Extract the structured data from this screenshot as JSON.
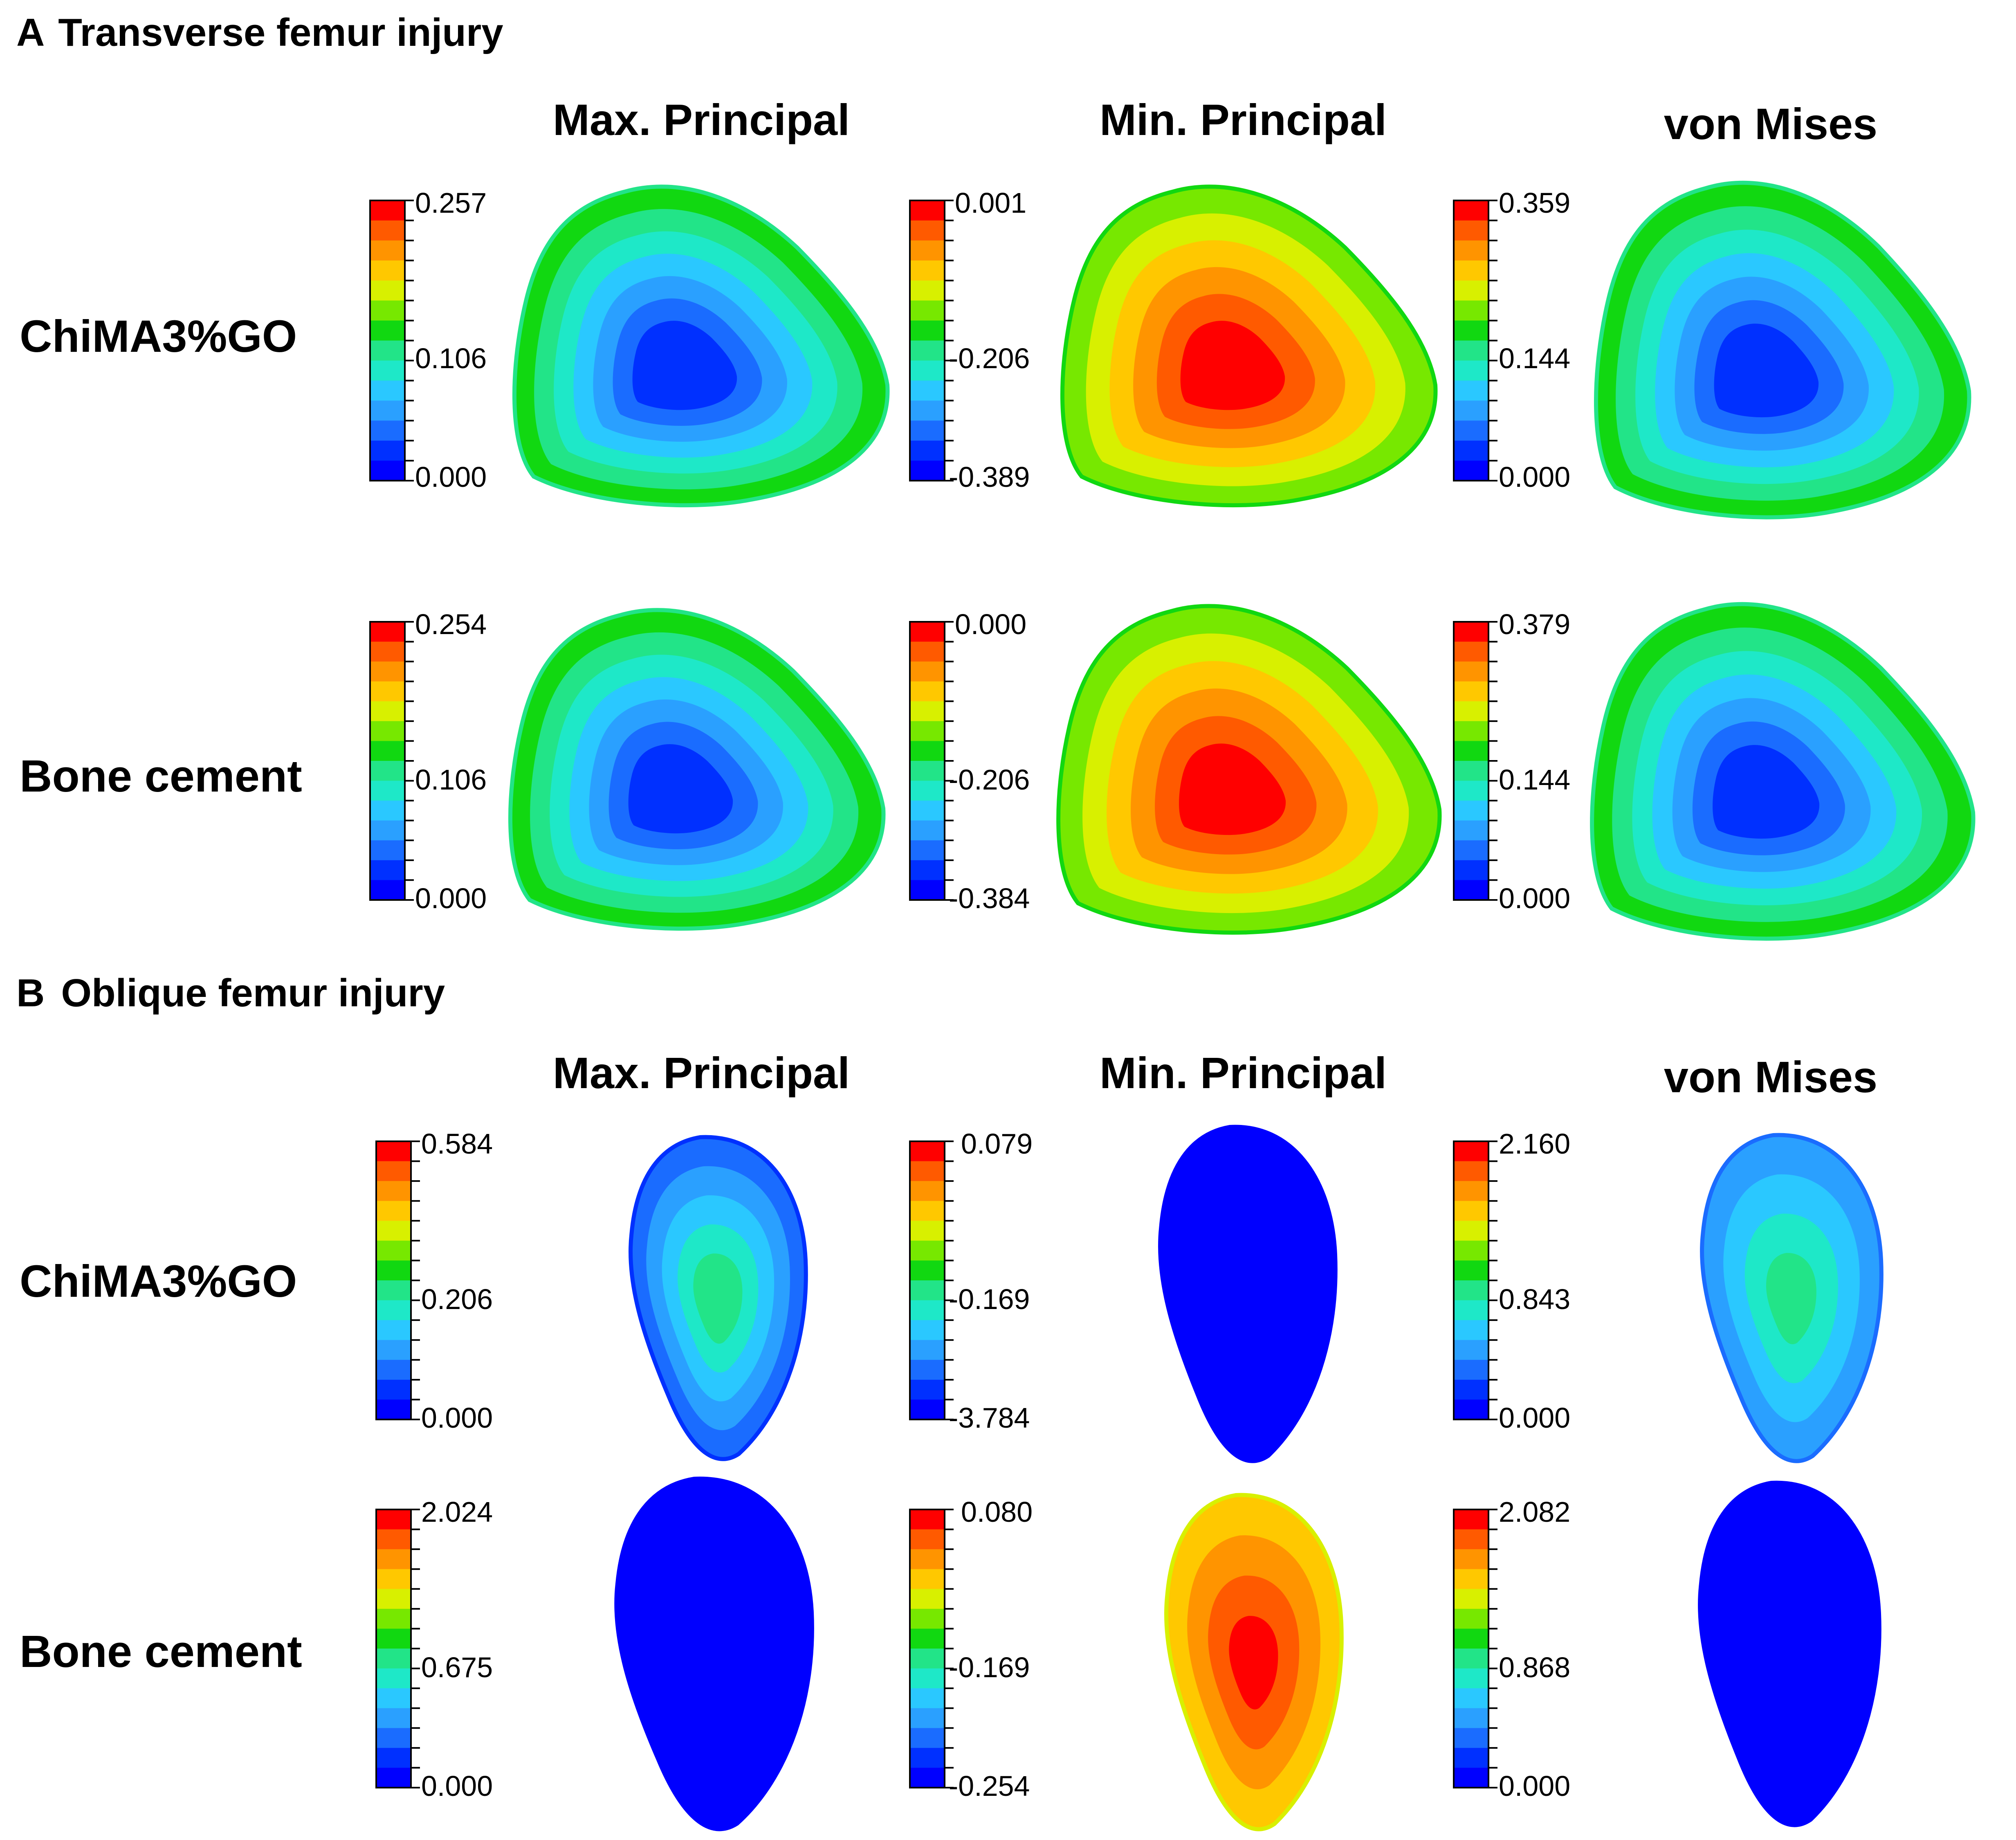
{
  "colors": {
    "scale": [
      "#0000ff",
      "#0030ff",
      "#1a6cff",
      "#2aa0ff",
      "#2ac8ff",
      "#1ee8c8",
      "#22e488",
      "#11d811",
      "#77e800",
      "#d8f000",
      "#ffc800",
      "#ff9400",
      "#ff5a00",
      "#ff0000"
    ],
    "text": "#000000",
    "background": "#ffffff"
  },
  "panels": [
    {
      "letter": "A",
      "title": "Transverse femur injury",
      "columns": [
        "Max. Principal",
        "Min. Principal",
        "von Mises"
      ],
      "rows": [
        {
          "label": "ChiMA3%GO",
          "plots": [
            {
              "metric": "Max. Principal",
              "max": "0.257",
              "mid": "0.106",
              "min": "0.000",
              "shape": "triangular",
              "core_level": 1,
              "outer_level": 7
            },
            {
              "metric": "Min. Principal",
              "max": "0.001",
              "mid": "-0.206",
              "min": "-0.389",
              "shape": "triangular",
              "core_level": 13,
              "outer_level": 8
            },
            {
              "metric": "von Mises",
              "max": "0.359",
              "mid": "0.144",
              "min": "0.000",
              "shape": "triangular",
              "core_level": 1,
              "outer_level": 7
            }
          ]
        },
        {
          "label": "Bone cement",
          "plots": [
            {
              "metric": "Max. Principal",
              "max": "0.254",
              "mid": "0.106",
              "min": "0.000",
              "shape": "triangular",
              "core_level": 1,
              "outer_level": 7
            },
            {
              "metric": "Min. Principal",
              "max": "0.000",
              "mid": "-0.206",
              "min": "-0.384",
              "shape": "triangular",
              "core_level": 13,
              "outer_level": 8
            },
            {
              "metric": "von Mises",
              "max": "0.379",
              "mid": "0.144",
              "min": "0.000",
              "shape": "triangular",
              "core_level": 1,
              "outer_level": 7
            }
          ]
        }
      ]
    },
    {
      "letter": "B",
      "title": "Oblique femur injury",
      "columns": [
        "Max. Principal",
        "Min. Principal",
        "von Mises"
      ],
      "rows": [
        {
          "label": "ChiMA3%GO",
          "plots": [
            {
              "metric": "Max. Principal",
              "max": "0.584",
              "mid": "0.206",
              "min": "0.000",
              "shape": "oval",
              "core_level": 6,
              "outer_level": 2
            },
            {
              "metric": "Min. Principal",
              "max": "0.079",
              "mid": "-0.169",
              "min": "-3.784",
              "shape": "oval",
              "core_level": 0,
              "outer_level": 0
            },
            {
              "metric": "von Mises",
              "max": "2.160",
              "mid": "0.843",
              "min": "0.000",
              "shape": "oval",
              "core_level": 6,
              "outer_level": 3
            }
          ]
        },
        {
          "label": "Bone cement",
          "plots": [
            {
              "metric": "Max. Principal",
              "max": "2.024",
              "mid": "0.675",
              "min": "0.000",
              "shape": "oval",
              "core_level": 0,
              "outer_level": 0
            },
            {
              "metric": "Min. Principal",
              "max": "0.080",
              "mid": "-0.169",
              "min": "-0.254",
              "shape": "oval",
              "core_level": 13,
              "outer_level": 10
            },
            {
              "metric": "von Mises",
              "max": "2.082",
              "mid": "0.868",
              "min": "0.000",
              "shape": "oval",
              "core_level": 0,
              "outer_level": 0
            }
          ]
        }
      ]
    }
  ]
}
